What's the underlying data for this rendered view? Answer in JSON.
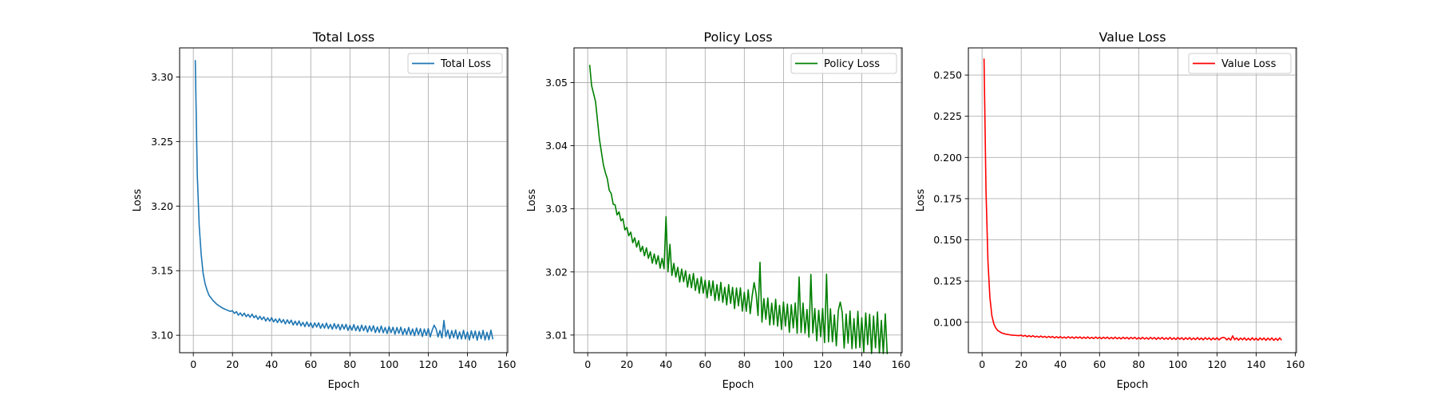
{
  "chart_data": [
    {
      "type": "line",
      "title": "Total Loss",
      "xlabel": "Epoch",
      "ylabel": "Loss",
      "xlim": [
        -7,
        160.6
      ],
      "ylim": [
        3.0865,
        3.3225
      ],
      "xticks": [
        "0",
        "20",
        "40",
        "60",
        "80",
        "100",
        "120",
        "140",
        "160"
      ],
      "yticks": [
        "3.10",
        "3.15",
        "3.20",
        "3.25",
        "3.30"
      ],
      "grid": true,
      "legend_position": "upper right",
      "color": "#1f77b4",
      "series": [
        {
          "name": "Total Loss",
          "x_start": 1,
          "x_end": 153,
          "keypoints": [
            [
              1,
              3.313
            ],
            [
              2,
              3.225
            ],
            [
              3,
              3.185
            ],
            [
              4,
              3.163
            ],
            [
              5,
              3.148
            ],
            [
              6,
              3.14
            ],
            [
              7,
              3.135
            ],
            [
              8,
              3.131
            ],
            [
              10,
              3.127
            ],
            [
              12,
              3.124
            ],
            [
              15,
              3.121
            ],
            [
              18,
              3.119
            ],
            [
              20,
              3.118
            ],
            [
              25,
              3.116
            ],
            [
              30,
              3.115
            ],
            [
              35,
              3.113
            ],
            [
              40,
              3.112
            ],
            [
              50,
              3.11
            ],
            [
              60,
              3.108
            ],
            [
              70,
              3.107
            ],
            [
              80,
              3.106
            ],
            [
              90,
              3.105
            ],
            [
              100,
              3.104
            ],
            [
              110,
              3.103
            ],
            [
              120,
              3.102
            ],
            [
              130,
              3.101
            ],
            [
              140,
              3.1
            ],
            [
              153,
              3.1
            ]
          ],
          "oscillation": {
            "start": 20,
            "amplitude_start": 0.0012,
            "amplitude_end": 0.004,
            "bursts": [
              [
                123,
                0.009
              ],
              [
                128,
                0.007
              ]
            ]
          }
        }
      ]
    },
    {
      "type": "line",
      "title": "Policy Loss",
      "xlabel": "Epoch",
      "ylabel": "Loss",
      "xlim": [
        -7,
        160.6
      ],
      "ylim": [
        3.0072,
        3.0555
      ],
      "xticks": [
        "0",
        "20",
        "40",
        "60",
        "80",
        "100",
        "120",
        "140",
        "160"
      ],
      "yticks": [
        "3.01",
        "3.02",
        "3.03",
        "3.04",
        "3.05"
      ],
      "grid": true,
      "legend_position": "upper right",
      "color": "#008000",
      "series": [
        {
          "name": "Policy Loss",
          "x_start": 1,
          "x_end": 153,
          "keypoints": [
            [
              1,
              3.0528
            ],
            [
              2,
              3.0495
            ],
            [
              4,
              3.047
            ],
            [
              6,
              3.041
            ],
            [
              8,
              3.037
            ],
            [
              10,
              3.0345
            ],
            [
              12,
              3.032
            ],
            [
              15,
              3.0295
            ],
            [
              18,
              3.028
            ],
            [
              20,
              3.0265
            ],
            [
              25,
              3.0245
            ],
            [
              30,
              3.023
            ],
            [
              35,
              3.0218
            ],
            [
              40,
              3.0212
            ],
            [
              45,
              3.02
            ],
            [
              50,
              3.019
            ],
            [
              60,
              3.0175
            ],
            [
              70,
              3.0165
            ],
            [
              80,
              3.0155
            ],
            [
              90,
              3.014
            ],
            [
              100,
              3.013
            ],
            [
              110,
              3.0125
            ],
            [
              120,
              3.0115
            ],
            [
              130,
              3.011
            ],
            [
              140,
              3.0105
            ],
            [
              150,
              3.0103
            ],
            [
              153,
              3.0097
            ]
          ],
          "oscillation": {
            "start": 10,
            "amplitude_start": 0.0004,
            "amplitude_end": 0.0035,
            "bursts": [
              [
                40,
                0.0065
              ],
              [
                42,
                0.003
              ],
              [
                85,
                0.0055
              ],
              [
                88,
                0.0055
              ],
              [
                108,
                0.005
              ],
              [
                114,
                0.005
              ],
              [
                122,
                0.0065
              ],
              [
                129,
                0.006
              ]
            ]
          }
        }
      ]
    },
    {
      "type": "line",
      "title": "Value Loss",
      "xlabel": "Epoch",
      "ylabel": "Loss",
      "xlim": [
        -7,
        160.6
      ],
      "ylim": [
        0.0815,
        0.2665
      ],
      "xticks": [
        "0",
        "20",
        "40",
        "60",
        "80",
        "100",
        "120",
        "140",
        "160"
      ],
      "yticks": [
        "0.100",
        "0.125",
        "0.150",
        "0.175",
        "0.200",
        "0.225",
        "0.250"
      ],
      "grid": true,
      "legend_position": "upper right",
      "color": "#ff0000",
      "series": [
        {
          "name": "Value Loss",
          "x_start": 1,
          "x_end": 153,
          "keypoints": [
            [
              1,
              0.26
            ],
            [
              2,
              0.18
            ],
            [
              3,
              0.137
            ],
            [
              4,
              0.115
            ],
            [
              5,
              0.104
            ],
            [
              6,
              0.099
            ],
            [
              7,
              0.0965
            ],
            [
              8,
              0.095
            ],
            [
              10,
              0.0935
            ],
            [
              12,
              0.0928
            ],
            [
              15,
              0.0922
            ],
            [
              20,
              0.0918
            ],
            [
              30,
              0.0912
            ],
            [
              40,
              0.0908
            ],
            [
              60,
              0.0905
            ],
            [
              80,
              0.0903
            ],
            [
              100,
              0.0901
            ],
            [
              120,
              0.0899
            ],
            [
              140,
              0.0898
            ],
            [
              153,
              0.0897
            ]
          ],
          "oscillation": {
            "start": 20,
            "amplitude_start": 0.0004,
            "amplitude_end": 0.0008,
            "bursts": [
              [
                123,
                0.0015
              ],
              [
                128,
                0.0012
              ]
            ]
          }
        }
      ]
    }
  ]
}
